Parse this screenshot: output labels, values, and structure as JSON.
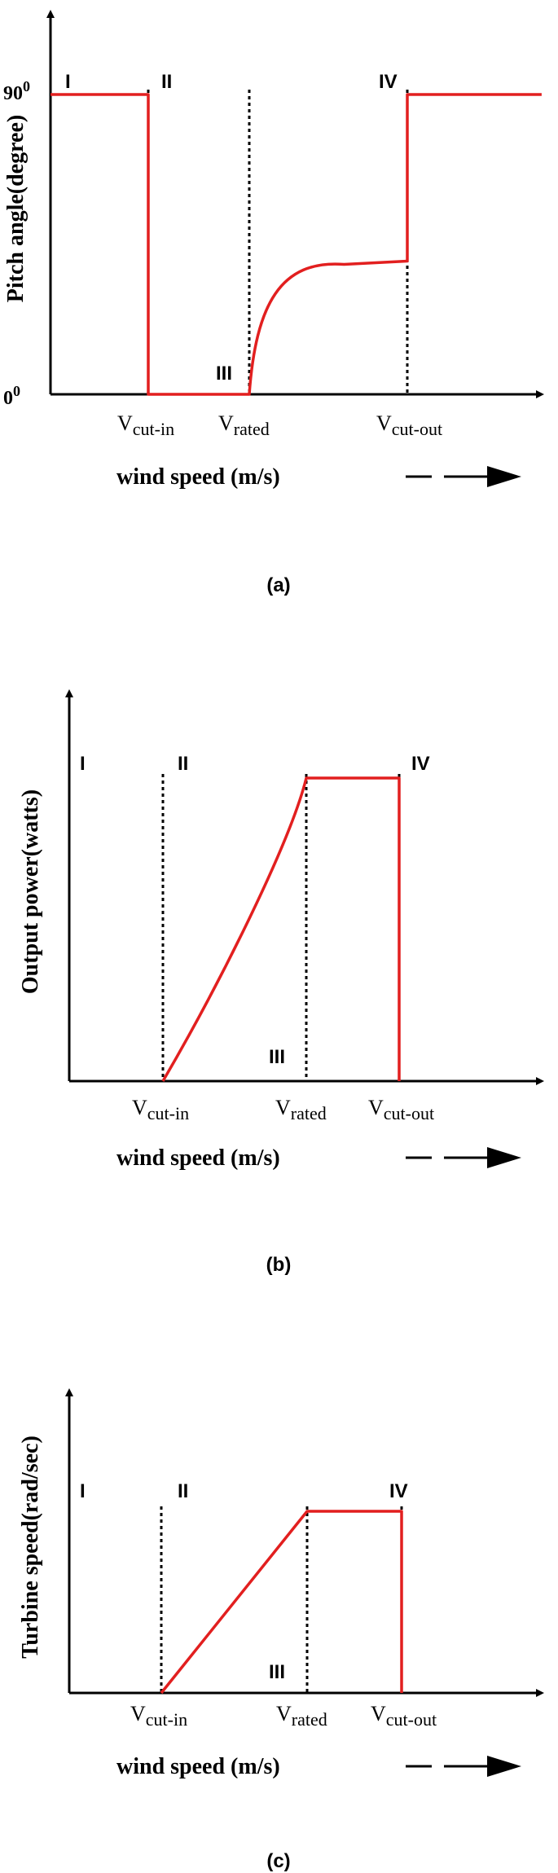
{
  "chart_data": [
    {
      "type": "line",
      "caption": "(a)",
      "ylabel": "Pitch angle(degree)",
      "xlabel": "wind speed (m/s)",
      "y_ticks": [
        {
          "base": "90",
          "sup": "0",
          "value": 90
        },
        {
          "base": "0",
          "sup": "0",
          "value": 0
        }
      ],
      "regions": [
        "I",
        "II",
        "III",
        "IV"
      ],
      "markers": [
        {
          "base": "V",
          "sub": "cut-in",
          "x": 1
        },
        {
          "base": "V",
          "sub": "rated",
          "x": 2
        },
        {
          "base": "V",
          "sub": "cut-out",
          "x": 3
        }
      ],
      "ylim": [
        0,
        90
      ],
      "series": [
        {
          "x": [
            0,
            1,
            1,
            2,
            2.1,
            2.3,
            2.6,
            3,
            3,
            3.85
          ],
          "values": [
            90,
            90,
            0,
            0,
            22,
            33,
            39,
            40,
            90,
            90
          ]
        }
      ],
      "color": "#e21f1f"
    },
    {
      "type": "line",
      "caption": "(b)",
      "ylabel": "Output power(watts)",
      "xlabel": "wind speed (m/s)",
      "regions": [
        "I",
        "II",
        "III",
        "IV"
      ],
      "markers": [
        {
          "base": "V",
          "sub": "cut-in",
          "x": 1
        },
        {
          "base": "V",
          "sub": "rated",
          "x": 2
        },
        {
          "base": "V",
          "sub": "cut-out",
          "x": 3
        }
      ],
      "ylim": [
        0,
        1
      ],
      "series": [
        {
          "x": [
            1,
            1.3,
            1.6,
            1.85,
            2,
            3,
            3
          ],
          "values": [
            0,
            0.26,
            0.55,
            0.82,
            1,
            1,
            0
          ]
        }
      ],
      "color": "#e21f1f"
    },
    {
      "type": "line",
      "caption": "(c)",
      "ylabel": "Turbine speed(rad/sec)",
      "xlabel": "wind speed (m/s)",
      "regions": [
        "I",
        "II",
        "III",
        "IV"
      ],
      "markers": [
        {
          "base": "V",
          "sub": "cut-in",
          "x": 1
        },
        {
          "base": "V",
          "sub": "rated",
          "x": 2
        },
        {
          "base": "V",
          "sub": "cut-out",
          "x": 3
        }
      ],
      "ylim": [
        0,
        1
      ],
      "series": [
        {
          "x": [
            1,
            2,
            3,
            3
          ],
          "values": [
            0,
            1,
            1,
            0
          ]
        }
      ],
      "color": "#e21f1f"
    }
  ]
}
